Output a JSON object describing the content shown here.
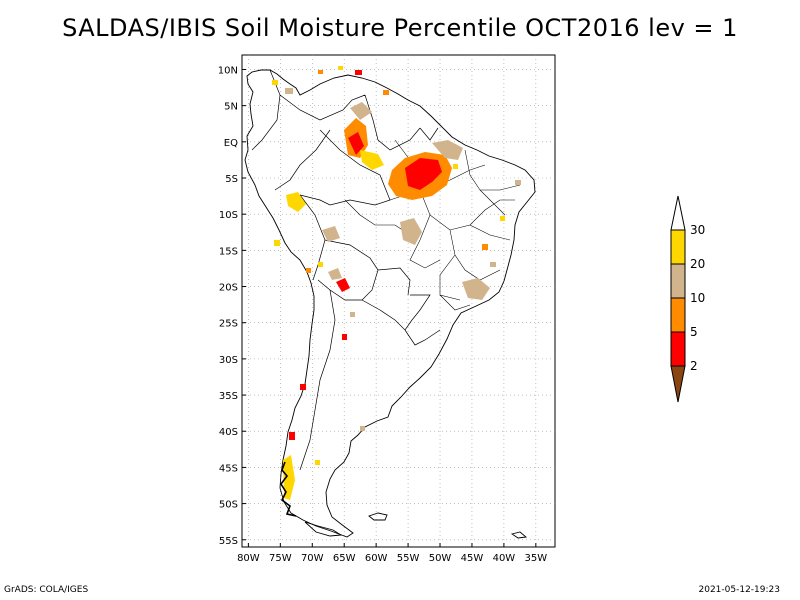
{
  "title": "SALDAS/IBIS Soil Moisture Percentile OCT2016 lev = 1",
  "map": {
    "lat_labels": [
      "10N",
      "5N",
      "EQ",
      "5S",
      "10S",
      "15S",
      "20S",
      "25S",
      "30S",
      "35S",
      "40S",
      "45S",
      "50S",
      "55S"
    ],
    "lat_values": [
      10,
      5,
      0,
      -5,
      -10,
      -15,
      -20,
      -25,
      -30,
      -35,
      -40,
      -45,
      -50,
      -55
    ],
    "lon_labels": [
      "80W",
      "75W",
      "70W",
      "65W",
      "60W",
      "55W",
      "50W",
      "45W",
      "40W",
      "35W"
    ],
    "lon_values": [
      -80,
      -75,
      -70,
      -65,
      -60,
      -55,
      -50,
      -45,
      -40,
      -35
    ],
    "lon_range": [
      -81,
      -32
    ],
    "lat_range": [
      -56,
      12
    ]
  },
  "legend": {
    "bins": [
      {
        "from": "bottom-arrow",
        "color": "#8b4513"
      },
      {
        "label": "2",
        "color": "#ff0000"
      },
      {
        "label": "5",
        "color": "#ff8c00"
      },
      {
        "label": "10",
        "color": "#d2b48c"
      },
      {
        "label": "20",
        "color": "#ffd700"
      },
      {
        "label": "30",
        "color": "#ffffff"
      }
    ],
    "labels": [
      "2",
      "5",
      "10",
      "20",
      "30"
    ]
  },
  "credits": {
    "left": "GrADS: COLA/IGES",
    "right": "2021-05-12-19:23"
  },
  "colors": {
    "red": "#ff0000",
    "orange": "#ff8c00",
    "tan": "#d2b48c",
    "gold": "#ffd700",
    "brown": "#8b4513"
  }
}
